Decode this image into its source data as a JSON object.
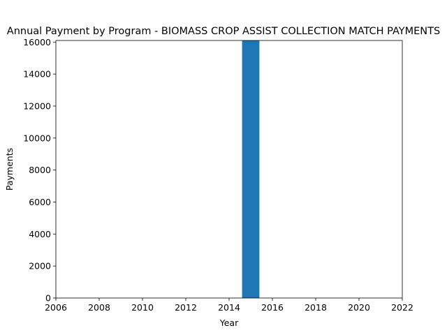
{
  "chart_data": {
    "type": "bar",
    "title": "Annual Payment by Program - BIOMASS CROP ASSIST COLLECTION MATCH PAYMENTS",
    "xlabel": "Year",
    "ylabel": "Payments",
    "x": [
      2015
    ],
    "values": [
      16100
    ],
    "bar_width_years": 0.8,
    "xlim": [
      2006,
      2022
    ],
    "ylim": [
      0,
      16100
    ],
    "xticks": [
      2006,
      2008,
      2010,
      2012,
      2014,
      2016,
      2018,
      2020,
      2022
    ],
    "yticks": [
      0,
      2000,
      4000,
      6000,
      8000,
      10000,
      12000,
      14000,
      16000
    ],
    "bar_color": "#1f77b4",
    "grid": false,
    "legend": "none"
  }
}
